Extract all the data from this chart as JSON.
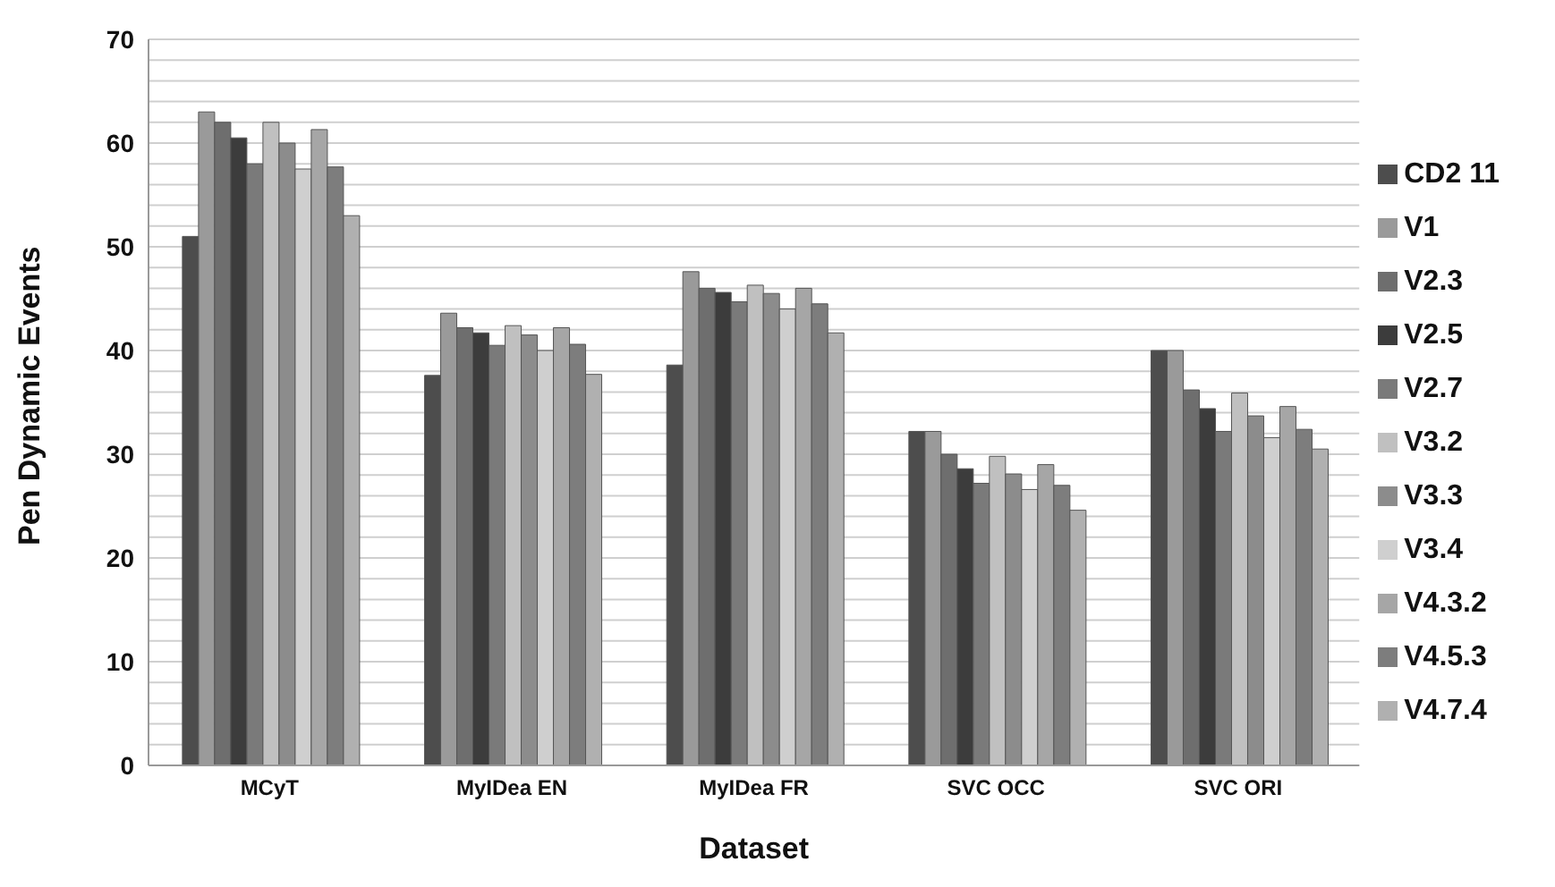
{
  "chart_data": {
    "type": "bar",
    "xlabel": "Dataset",
    "ylabel": "Pen Dynamic Events",
    "categories": [
      "MCyT",
      "MyIDea EN",
      "MyIDea FR",
      "SVC OCC",
      "SVC ORI"
    ],
    "series": [
      {
        "name": "CD2 11",
        "color": "#4d4d4d",
        "values": [
          51,
          37.6,
          38.6,
          32.2,
          40
        ]
      },
      {
        "name": "V1",
        "color": "#9a9a9a",
        "values": [
          63,
          43.6,
          47.6,
          32.2,
          40
        ]
      },
      {
        "name": "V2.3",
        "color": "#6e6e6e",
        "values": [
          62,
          42.2,
          46,
          30,
          36.2
        ]
      },
      {
        "name": "V2.5",
        "color": "#3c3c3c",
        "values": [
          60.5,
          41.7,
          45.6,
          28.6,
          34.4
        ]
      },
      {
        "name": "V2.7",
        "color": "#7a7a7a",
        "values": [
          58,
          40.5,
          44.7,
          27.2,
          32.2
        ]
      },
      {
        "name": "V3.2",
        "color": "#c0c0c0",
        "values": [
          62,
          42.4,
          46.3,
          29.8,
          35.9
        ]
      },
      {
        "name": "V3.3",
        "color": "#8c8c8c",
        "values": [
          60,
          41.5,
          45.5,
          28.1,
          33.7
        ]
      },
      {
        "name": "V3.4",
        "color": "#cfcfcf",
        "values": [
          57.5,
          40,
          44,
          26.6,
          31.6
        ]
      },
      {
        "name": "V4.3.2",
        "color": "#a6a6a6",
        "values": [
          61.3,
          42.2,
          46,
          29,
          34.6
        ]
      },
      {
        "name": "V4.5.3",
        "color": "#7d7d7d",
        "values": [
          57.7,
          40.6,
          44.5,
          27,
          32.4
        ]
      },
      {
        "name": "V4.7.4",
        "color": "#b0b0b0",
        "values": [
          53,
          37.7,
          41.7,
          24.6,
          30.5
        ]
      }
    ],
    "ylim": [
      0,
      70
    ],
    "yticks": [
      0,
      {
        "value": 2,
        "label": null
      },
      {
        "value": 4,
        "label": null
      },
      {
        "value": 6,
        "label": null
      },
      {
        "value": 8,
        "label": null
      },
      10,
      {
        "value": 12,
        "label": null
      },
      {
        "value": 14,
        "label": null
      },
      {
        "value": 16,
        "label": null
      },
      {
        "value": 18,
        "label": null
      },
      20,
      {
        "value": 22,
        "label": null
      },
      {
        "value": 24,
        "label": null
      },
      {
        "value": 26,
        "label": null
      },
      {
        "value": 28,
        "label": null
      },
      30,
      {
        "value": 32,
        "label": null
      },
      {
        "value": 34,
        "label": null
      },
      {
        "value": 36,
        "label": null
      },
      {
        "value": 38,
        "label": null
      },
      40,
      {
        "value": 42,
        "label": null
      },
      {
        "value": 44,
        "label": null
      },
      {
        "value": 46,
        "label": null
      },
      {
        "value": 48,
        "label": null
      },
      50,
      {
        "value": 52,
        "label": null
      },
      {
        "value": 54,
        "label": null
      },
      {
        "value": 56,
        "label": null
      },
      {
        "value": 58,
        "label": null
      },
      60,
      {
        "value": 62,
        "label": null
      },
      {
        "value": 64,
        "label": null
      },
      {
        "value": 66,
        "label": null
      },
      {
        "value": 68,
        "label": null
      },
      70
    ],
    "grid": "y",
    "legend": "right"
  }
}
